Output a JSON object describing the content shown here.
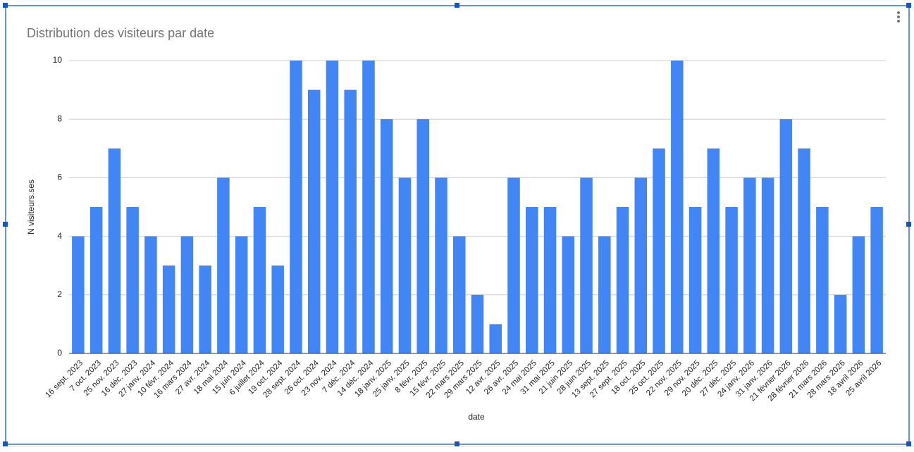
{
  "chart_data": {
    "type": "bar",
    "title": "Distribution des visiteurs par date",
    "x_label": "date",
    "y_label": "N visiteurs.ses",
    "categories": [
      "16 sept. 2023",
      "7 oct. 2023",
      "25 nov. 2023",
      "16 déc. 2023",
      "27 janv. 2024",
      "10 févr. 2024",
      "16 mars 2024",
      "27 avr. 2024",
      "18 mai 2024",
      "15 juin 2024",
      "6 juillet 2024",
      "19 oct. 2024",
      "28 sept. 2024",
      "26 oct. 2024",
      "23 nov. 2024",
      "7 déc. 2024",
      "14 déc. 2024",
      "18 janv. 2025",
      "25 janv. 2025",
      "8 févr. 2025",
      "15 févr. 2025",
      "22 mars 2025",
      "29 mars 2025",
      "12 avr. 2025",
      "26 avr. 2025",
      "24 mai 2025",
      "31 mai 2025",
      "21 juin 2025",
      "28 juin 2025",
      "13 sept. 2025",
      "27 sept. 2025",
      "18 oct. 2025",
      "25 oct. 2025",
      "22 nov. 2025",
      "29 nov. 2025",
      "20 déc. 2025",
      "27 déc. 2025",
      "24 janv. 2026",
      "31 janv. 2026",
      "21 février 2026",
      "28 février 2026",
      "21 mars 2026",
      "28 mars 2026",
      "18 avril 2026",
      "25 avril 2026"
    ],
    "values": [
      4,
      5,
      7,
      5,
      4,
      3,
      4,
      3,
      6,
      4,
      5,
      3,
      10,
      9,
      10,
      9,
      10,
      8,
      6,
      8,
      6,
      4,
      2,
      1,
      6,
      5,
      5,
      4,
      6,
      4,
      5,
      6,
      7,
      10,
      5,
      7,
      5,
      6,
      6,
      8,
      7,
      5,
      2,
      4,
      5
    ],
    "color": "#4285f4",
    "ylim": [
      0,
      10
    ],
    "yticks": [
      0,
      2,
      4,
      6,
      8,
      10
    ],
    "grid": true
  }
}
